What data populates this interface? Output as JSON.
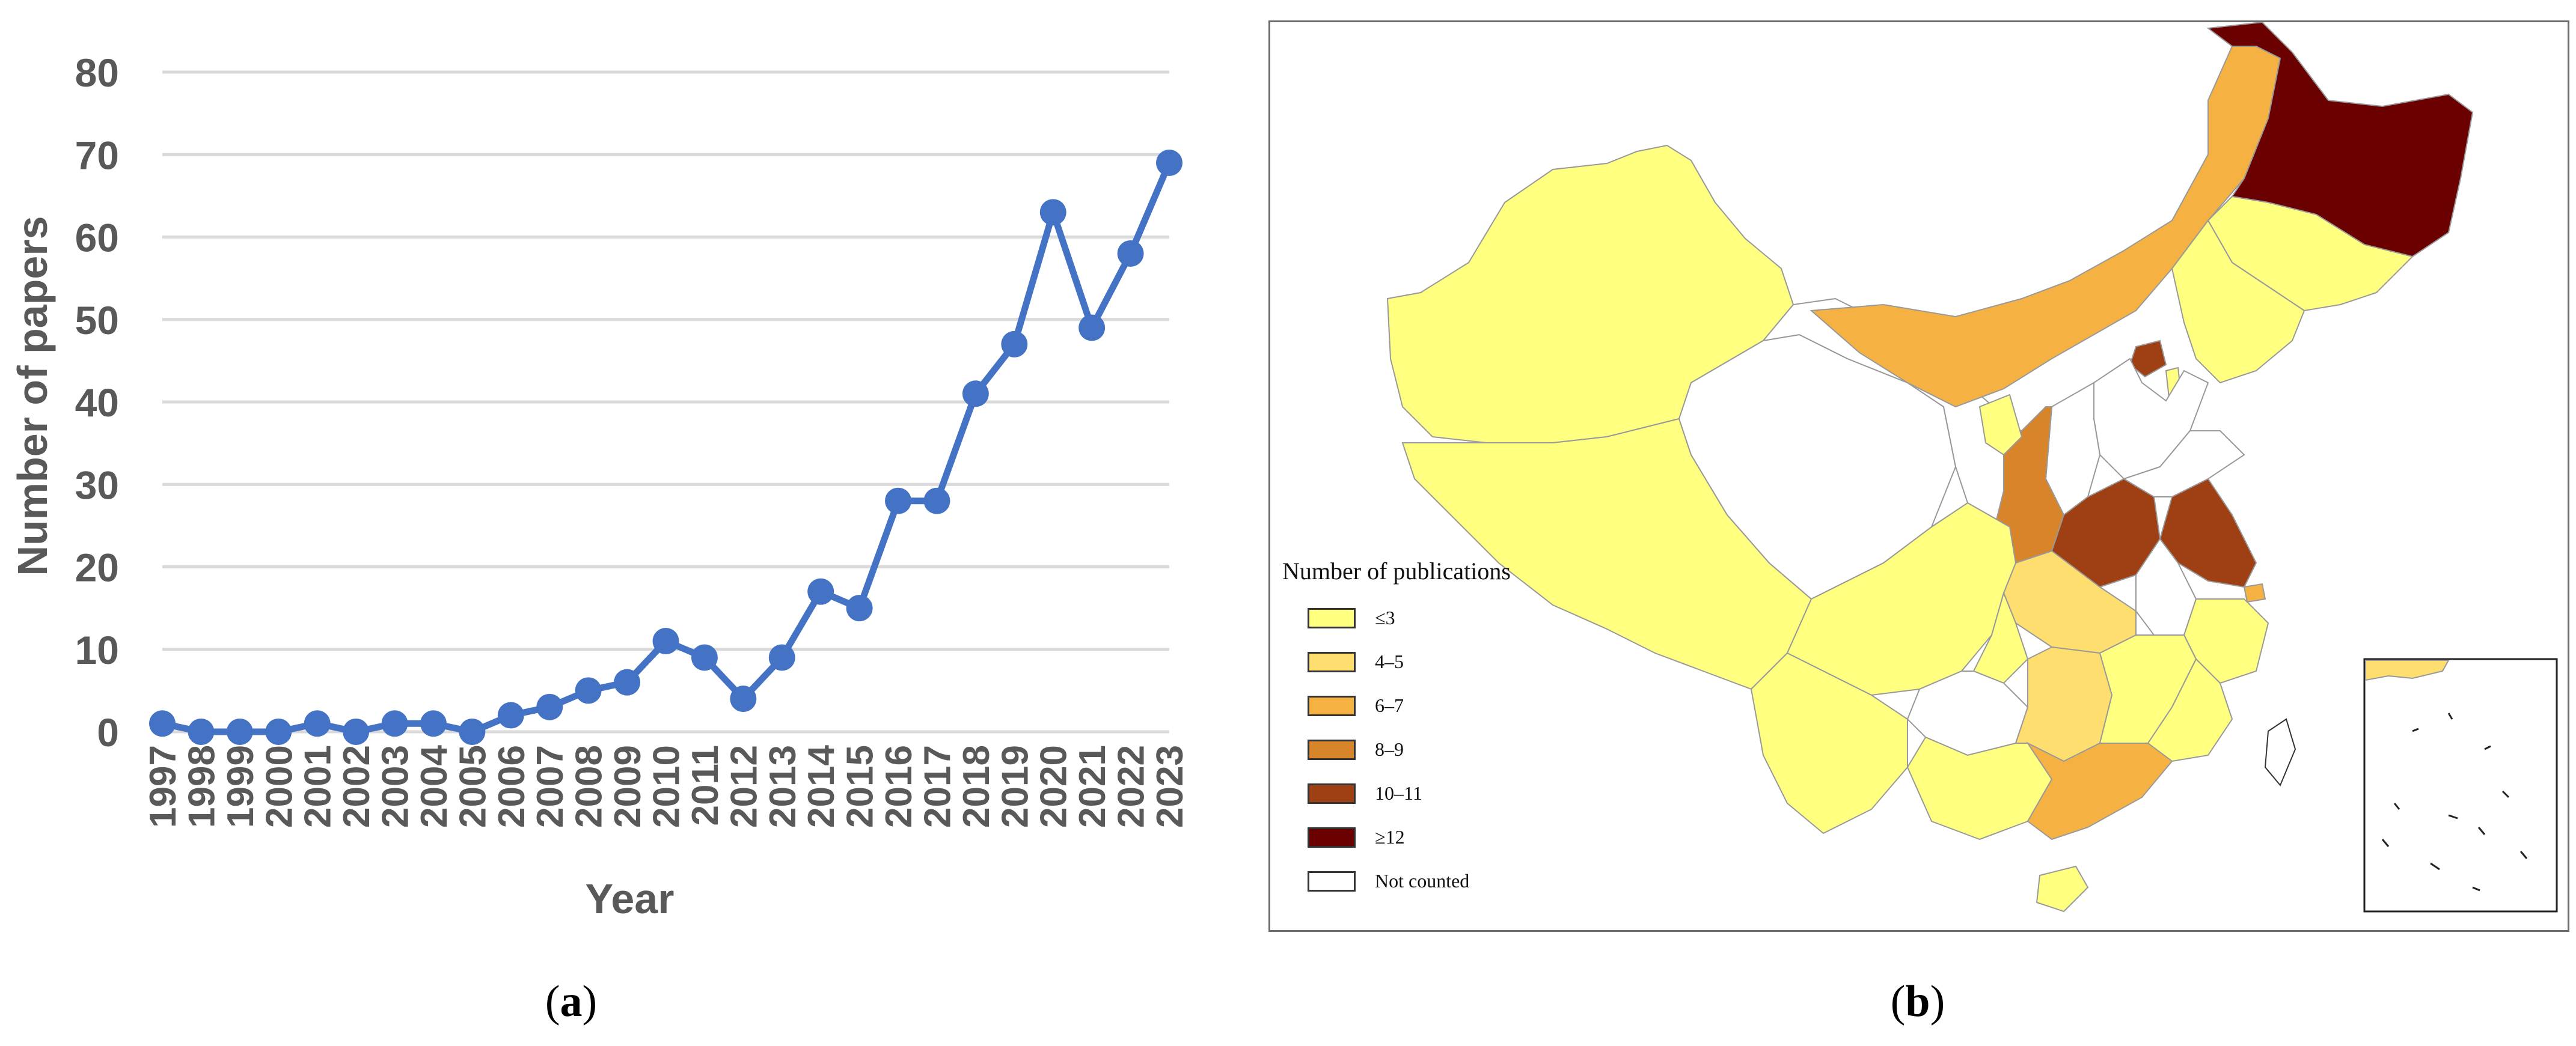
{
  "panels": {
    "a": {
      "caption": "a"
    },
    "b": {
      "caption": "b"
    }
  },
  "chart_data": {
    "type": "line",
    "xlabel": "Year",
    "ylabel": "Number of papers",
    "ylim": [
      0,
      80
    ],
    "yticks": [
      0,
      10,
      20,
      30,
      40,
      50,
      60,
      70,
      80
    ],
    "grid": true,
    "color": "#4472C4",
    "x": [
      "1997",
      "1998",
      "1999",
      "2000",
      "2001",
      "2002",
      "2003",
      "2004",
      "2005",
      "2006",
      "2007",
      "2008",
      "2009",
      "2010",
      "2011",
      "2012",
      "2013",
      "2014",
      "2015",
      "2016",
      "2017",
      "2018",
      "2019",
      "2020",
      "2021",
      "2022",
      "2023"
    ],
    "values": [
      1,
      0,
      0,
      0,
      1,
      0,
      1,
      1,
      0,
      2,
      3,
      5,
      6,
      11,
      9,
      4,
      9,
      17,
      15,
      28,
      28,
      41,
      47,
      63,
      49,
      58,
      69
    ]
  },
  "map": {
    "legend": {
      "title": "Number of publications",
      "items": [
        {
          "label": "≤3",
          "color": "#FFFF80"
        },
        {
          "label": "4–5",
          "color": "#FFDE70"
        },
        {
          "label": "6–7",
          "color": "#F5B243"
        },
        {
          "label": "8–9",
          "color": "#D8842A"
        },
        {
          "label": "10–11",
          "color": "#9E4013"
        },
        {
          "label": "≥12",
          "color": "#6B0000"
        },
        {
          "label": "Not counted",
          "color": "#FFFFFF"
        }
      ]
    }
  }
}
